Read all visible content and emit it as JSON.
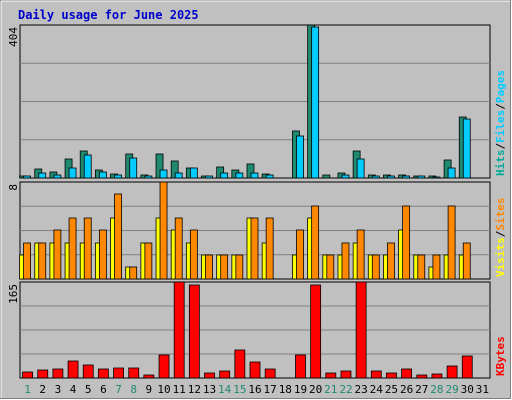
{
  "colors": {
    "background": "#ffffff",
    "panel": "#c0c0c0",
    "gridline": "#808080",
    "title": "#0000cc",
    "axis_text": "#000000",
    "pages": "#1f8a70",
    "files": "#00ccff",
    "hits": "#00aa99",
    "visits": "#ffff00",
    "sites": "#ff8800",
    "kbytes": "#ff0000",
    "weekend_label": "#1f8a70"
  },
  "chart_data": [
    {
      "type": "bar",
      "title": "Daily usage for June 2025",
      "ylim": [
        0,
        404
      ],
      "ytick_label": "404",
      "categories": [
        "1",
        "2",
        "3",
        "4",
        "5",
        "6",
        "7",
        "8",
        "9",
        "10",
        "11",
        "12",
        "13",
        "14",
        "15",
        "16",
        "17",
        "18",
        "19",
        "20",
        "21",
        "22",
        "23",
        "24",
        "25",
        "26",
        "27",
        "28",
        "29",
        "30",
        "31"
      ],
      "weekend_days": [
        "1",
        "7",
        "8",
        "14",
        "15",
        "21",
        "22",
        "28",
        "29"
      ],
      "legend_side": "right",
      "legend_parts": [
        {
          "text": "Hits",
          "color": "#00aa99"
        },
        {
          "text": "/",
          "color": "#000000"
        },
        {
          "text": "Files",
          "color": "#00ccff"
        },
        {
          "text": "/",
          "color": "#000000"
        },
        {
          "text": "Pages",
          "color": "#00ccff"
        }
      ],
      "series": [
        {
          "name": "Hits",
          "color": "#1f8a70",
          "values": [
            6,
            25,
            16,
            50,
            72,
            20,
            10,
            64,
            8,
            64,
            44,
            27,
            6,
            30,
            20,
            36,
            10,
            0,
            124,
            404,
            8,
            12,
            70,
            8,
            8,
            8,
            6,
            4,
            48,
            160,
            0
          ]
        },
        {
          "name": "Files",
          "color": "#00ccff",
          "values": [
            4,
            12,
            9,
            26,
            60,
            15,
            7,
            52,
            6,
            20,
            14,
            27,
            4,
            13,
            13,
            14,
            7,
            0,
            110,
            398,
            0,
            9,
            50,
            6,
            6,
            5,
            4,
            3,
            27,
            156,
            0
          ]
        }
      ]
    },
    {
      "type": "bar",
      "ylim": [
        0,
        8
      ],
      "ytick_label": "8",
      "legend_parts": [
        {
          "text": "Visits",
          "color": "#ffff00"
        },
        {
          "text": "/",
          "color": "#000000"
        },
        {
          "text": "Sites",
          "color": "#ff8800"
        }
      ],
      "series": [
        {
          "name": "Visits",
          "color": "#ffff00",
          "values": [
            2,
            3,
            3,
            3,
            3,
            3,
            5,
            1,
            3,
            5,
            4,
            3,
            2,
            2,
            2,
            5,
            3,
            0,
            2,
            5,
            2,
            2,
            3,
            2,
            2,
            4,
            2,
            1,
            2,
            2,
            0
          ]
        },
        {
          "name": "Sites",
          "color": "#ff8800",
          "values": [
            3,
            3,
            4,
            5,
            5,
            4,
            7,
            1,
            3,
            8,
            5,
            4,
            2,
            2,
            2,
            5,
            5,
            0,
            4,
            6,
            2,
            3,
            4,
            2,
            3,
            6,
            2,
            2,
            6,
            3,
            0
          ]
        }
      ]
    },
    {
      "type": "bar",
      "ylim": [
        0,
        165
      ],
      "ytick_label": "165",
      "legend_parts": [
        {
          "text": "KBytes",
          "color": "#ff0000"
        }
      ],
      "series": [
        {
          "name": "KBytes",
          "color": "#ff0000",
          "values": [
            10,
            14,
            16,
            30,
            22,
            15,
            18,
            18,
            6,
            40,
            165,
            160,
            8,
            12,
            48,
            28,
            15,
            0,
            40,
            160,
            8,
            12,
            165,
            12,
            9,
            15,
            6,
            7,
            20,
            38,
            0
          ]
        }
      ]
    }
  ]
}
